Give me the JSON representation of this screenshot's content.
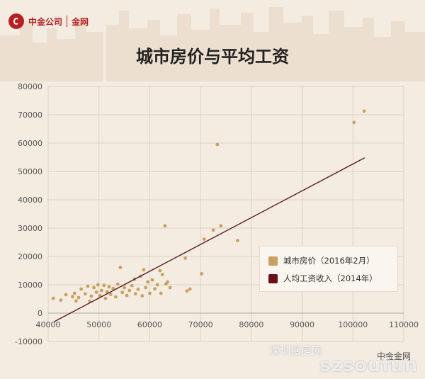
{
  "brand": {
    "name": "中金公司",
    "sub": "金网"
  },
  "title": "城市房价与平均工资",
  "legend": [
    {
      "label": "城市房价（2016年2月）",
      "color": "#c9a15f"
    },
    {
      "label": "人均工资收入（2014年）",
      "color": "#6b1018"
    }
  ],
  "watermark": {
    "text": "szsoufun",
    "cn": "深圳搜房网",
    "source": "中金金网"
  },
  "colors": {
    "background": "#f4ece1",
    "points": "#c9a15f",
    "trend": "#5a1a24",
    "grid": "#d9d2c8"
  },
  "chart_data": {
    "type": "scatter",
    "title": "城市房价与平均工资",
    "xlabel": "",
    "ylabel": "",
    "xlim": [
      40000,
      110000
    ],
    "ylim": [
      -10000,
      80000
    ],
    "xticks": [
      40000,
      50000,
      60000,
      70000,
      80000,
      90000,
      100000,
      110000
    ],
    "yticks": [
      -10000,
      0,
      10000,
      20000,
      30000,
      40000,
      50000,
      60000,
      70000,
      80000
    ],
    "grid": true,
    "legend_position": "right",
    "series": [
      {
        "name": "城市房价（2016年2月）",
        "kind": "scatter",
        "points": [
          [
            41000,
            5200
          ],
          [
            42500,
            4600
          ],
          [
            43500,
            6500
          ],
          [
            44800,
            5800
          ],
          [
            45200,
            7000
          ],
          [
            45500,
            4300
          ],
          [
            46000,
            5500
          ],
          [
            46500,
            8500
          ],
          [
            47300,
            6800
          ],
          [
            47800,
            9500
          ],
          [
            48200,
            4200
          ],
          [
            48500,
            6000
          ],
          [
            49000,
            9000
          ],
          [
            49500,
            7400
          ],
          [
            49800,
            10000
          ],
          [
            50200,
            6200
          ],
          [
            50500,
            8000
          ],
          [
            51000,
            9800
          ],
          [
            51300,
            5200
          ],
          [
            51600,
            7500
          ],
          [
            52000,
            9300
          ],
          [
            52300,
            6600
          ],
          [
            52800,
            8700
          ],
          [
            53300,
            5700
          ],
          [
            53700,
            10200
          ],
          [
            54200,
            16100
          ],
          [
            54600,
            7300
          ],
          [
            55000,
            9000
          ],
          [
            55500,
            6200
          ],
          [
            56000,
            8000
          ],
          [
            56500,
            9700
          ],
          [
            57000,
            12000
          ],
          [
            57200,
            6800
          ],
          [
            57700,
            8400
          ],
          [
            58200,
            13000
          ],
          [
            58500,
            6100
          ],
          [
            58800,
            15300
          ],
          [
            59200,
            9000
          ],
          [
            59600,
            11000
          ],
          [
            60000,
            7000
          ],
          [
            60500,
            11700
          ],
          [
            61000,
            8600
          ],
          [
            61500,
            10000
          ],
          [
            62000,
            15000
          ],
          [
            62200,
            7000
          ],
          [
            62500,
            13600
          ],
          [
            63000,
            30800
          ],
          [
            63200,
            10300
          ],
          [
            63500,
            11000
          ],
          [
            64000,
            9000
          ],
          [
            67000,
            19400
          ],
          [
            67300,
            7800
          ],
          [
            67900,
            8500
          ],
          [
            70200,
            13900
          ],
          [
            70700,
            26100
          ],
          [
            72500,
            29300
          ],
          [
            73300,
            59500
          ],
          [
            74000,
            30800
          ],
          [
            77300,
            25600
          ],
          [
            100200,
            67300
          ],
          [
            102200,
            71300
          ]
        ]
      },
      {
        "name": "人均工资收入（2014年）",
        "kind": "line",
        "points": [
          [
            41200,
            -3000
          ],
          [
            102300,
            54800
          ]
        ]
      }
    ]
  }
}
